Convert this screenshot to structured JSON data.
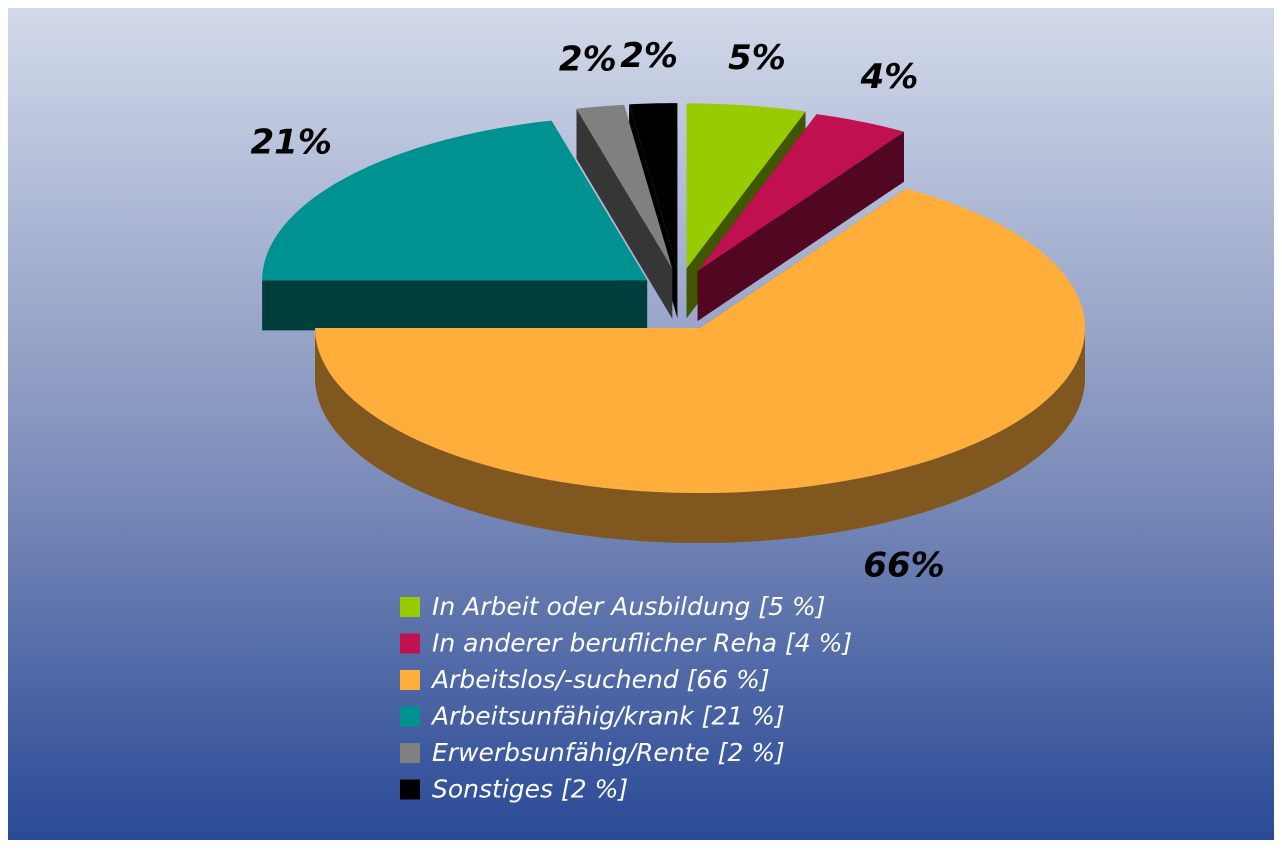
{
  "chart_data": {
    "type": "pie",
    "categories": [
      "In Arbeit oder Ausbildung [5 %]",
      "In anderer beruflicher Reha [4 %]",
      "Arbeitslos/-suchend [66 %]",
      "Arbeitsunfähig/krank [21 %]",
      "Erwerbsunfähig/Rente [2 %]",
      "Sonstiges [2 %]"
    ],
    "values": [
      5,
      4,
      66,
      21,
      2,
      2
    ],
    "value_labels": [
      "5%",
      "4%",
      "66%",
      "21%",
      "2%",
      "2%"
    ],
    "colors": [
      "#99cc00",
      "#c0104f",
      "#ffad3b",
      "#009191",
      "#808080",
      "#000000"
    ],
    "legend": "bottom"
  }
}
